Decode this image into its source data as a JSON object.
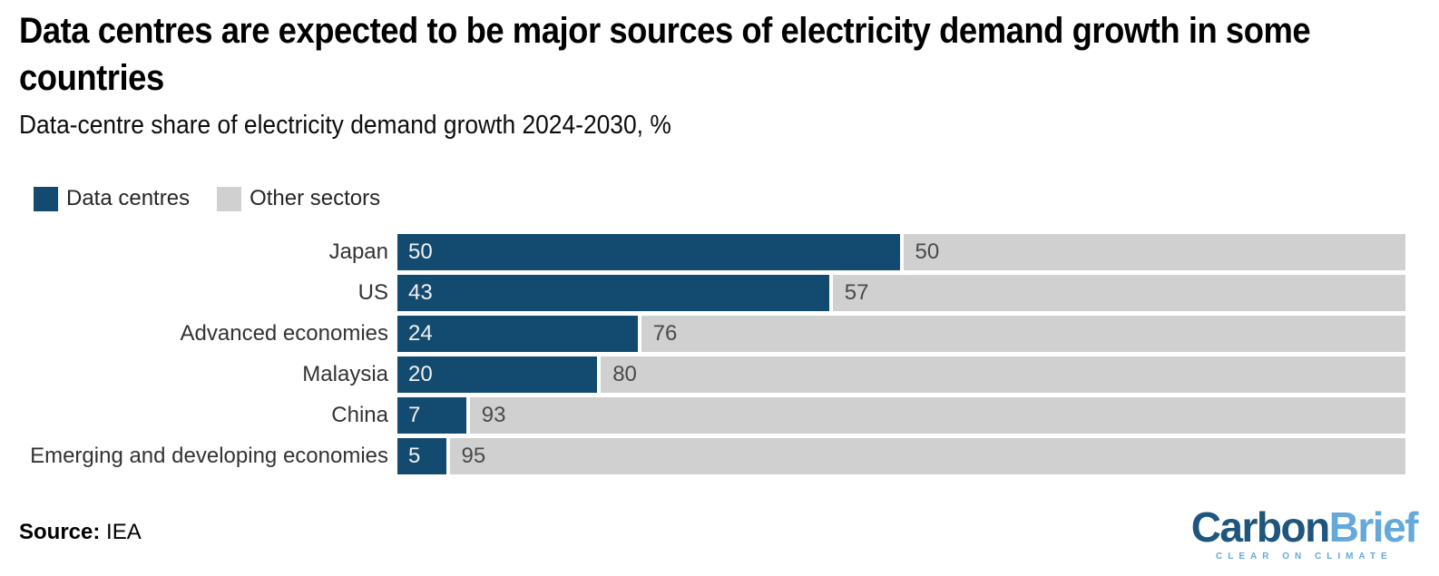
{
  "title": "Data centres are expected to be major sources of electricity demand growth in some countries",
  "subtitle": "Data-centre share of electricity demand growth 2024-2030, %",
  "legend": {
    "items": [
      {
        "label": "Data centres",
        "color": "#134a6f"
      },
      {
        "label": "Other sectors",
        "color": "#d0d0d0"
      }
    ]
  },
  "chart_data": {
    "type": "bar",
    "orientation": "horizontal",
    "stacked": true,
    "unit": "%",
    "xlim": [
      0,
      100
    ],
    "grid": false,
    "categories": [
      "Japan",
      "US",
      "Advanced economies",
      "Malaysia",
      "China",
      "Emerging and developing economies"
    ],
    "series": [
      {
        "name": "Data centres",
        "color": "#134a6f",
        "label_color": "#f2f2f2",
        "values": [
          50,
          43,
          24,
          20,
          7,
          5
        ]
      },
      {
        "name": "Other sectors",
        "color": "#d0d0d0",
        "label_color": "#4a4a4a",
        "values": [
          50,
          57,
          76,
          80,
          93,
          95
        ]
      }
    ]
  },
  "footer": {
    "source_label": "Source:",
    "source_value": "IEA"
  },
  "logo": {
    "part1": "Carbon",
    "part2": "Brief",
    "tagline": "CLEAR ON CLIMATE",
    "part1_color": "#1e567d",
    "part2_color": "#64a9d9",
    "tagline_color": "#64a9d9"
  }
}
